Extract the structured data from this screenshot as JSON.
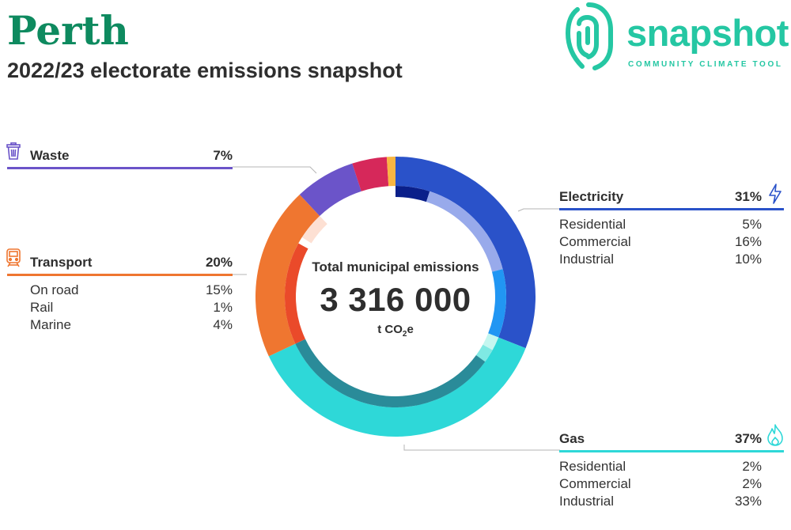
{
  "header": {
    "title": "Perth",
    "subtitle": "2022/23 electorate emissions snapshot"
  },
  "logo": {
    "wordmark": "snapshot",
    "tagline": "COMMUNITY CLIMATE TOOL",
    "color": "#25c7a3"
  },
  "center": {
    "label": "Total municipal emissions",
    "value": "3 316 000",
    "unit_prefix": "t CO",
    "unit_sub": "2",
    "unit_suffix": "e"
  },
  "panels": {
    "waste": {
      "label": "Waste",
      "pct": "7%",
      "color": "#6b54c9",
      "icon": "trash-bin-icon"
    },
    "transport": {
      "label": "Transport",
      "pct": "20%",
      "color": "#ef7630",
      "icon": "train-icon",
      "rows": [
        {
          "label": "On road",
          "pct": "15%"
        },
        {
          "label": "Rail",
          "pct": "1%"
        },
        {
          "label": "Marine",
          "pct": "4%"
        }
      ]
    },
    "electricity": {
      "label": "Electricity",
      "pct": "31%",
      "color": "#2a52c9",
      "icon": "lightning-bolt-icon",
      "rows": [
        {
          "label": "Residential",
          "pct": "5%"
        },
        {
          "label": "Commercial",
          "pct": "16%"
        },
        {
          "label": "Industrial",
          "pct": "10%"
        }
      ]
    },
    "gas": {
      "label": "Gas",
      "pct": "37%",
      "color": "#2ed8d8",
      "icon": "flame-icon",
      "rows": [
        {
          "label": "Residential",
          "pct": "2%"
        },
        {
          "label": "Commercial",
          "pct": "2%"
        },
        {
          "label": "Industrial",
          "pct": "33%"
        }
      ]
    }
  },
  "chart_data": {
    "type": "pie",
    "title": "Total municipal emissions",
    "total": 3316000,
    "unit": "t CO2e",
    "series": [
      {
        "name": "Electricity",
        "value": 31,
        "color": "#2a52c9",
        "sub": [
          {
            "name": "Residential",
            "value": 5,
            "color": "#0a1f8a"
          },
          {
            "name": "Commercial",
            "value": 16,
            "color": "#98aaeb"
          },
          {
            "name": "Industrial",
            "value": 10,
            "color": "#2196f3"
          }
        ]
      },
      {
        "name": "Gas",
        "value": 37,
        "color": "#2ed8d8",
        "sub": [
          {
            "name": "Residential",
            "value": 2,
            "color": "#c4f7f0"
          },
          {
            "name": "Commercial",
            "value": 2,
            "color": "#7fe9e3"
          },
          {
            "name": "Industrial",
            "value": 33,
            "color": "#2a8b99"
          }
        ]
      },
      {
        "name": "Transport",
        "value": 20,
        "color": "#ef7630",
        "sub": [
          {
            "name": "On road",
            "value": 15,
            "color": "#ea4a2a"
          },
          {
            "name": "Rail",
            "value": 1,
            "color": "#ffffff"
          },
          {
            "name": "Marine",
            "value": 4,
            "color": "#fde0d3"
          }
        ]
      },
      {
        "name": "Waste",
        "value": 7,
        "color": "#6b54c9",
        "sub": []
      },
      {
        "name": "",
        "value": 4,
        "color": "#d6285a",
        "sub": []
      },
      {
        "name": "",
        "value": 1,
        "color": "#f9b642",
        "sub": []
      }
    ]
  }
}
